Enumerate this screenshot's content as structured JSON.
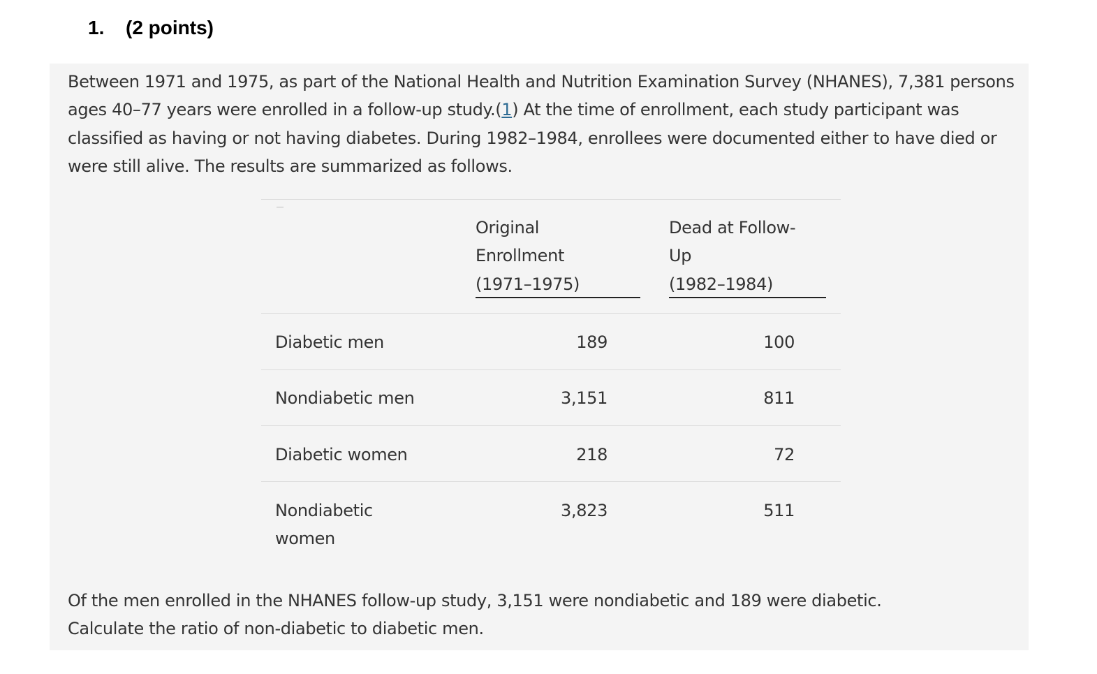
{
  "question": {
    "number": "1.",
    "points": "(2 points)"
  },
  "intro": {
    "text_before_link": "Between 1971 and 1975, as part of the National Health and Nutrition Examination Survey (NHANES), 7,381 persons ages 40–77 years were enrolled in a follow-up study.(",
    "link_text": "1",
    "text_after_link": ") At the time of enrollment, each study participant was classified as having or not having diabetes. During 1982–1984, enrollees were documented either to have died or were still alive. The results are summarized as follows."
  },
  "table": {
    "columns": [
      {
        "line1": "Original",
        "line2": "Enrollment",
        "line3": "(1971–1975)"
      },
      {
        "line1": "Dead at Follow-",
        "line2": "Up",
        "line3": "(1982–1984)"
      }
    ],
    "rows": [
      {
        "label": "Diabetic men",
        "original": "189",
        "dead": "100"
      },
      {
        "label": "Nondiabetic men",
        "original": "3,151",
        "dead": "811"
      },
      {
        "label": "Diabetic women",
        "original": "218",
        "dead": "72"
      },
      {
        "label_line1": "Nondiabetic",
        "label_line2": "women",
        "original": "3,823",
        "dead": "511"
      }
    ]
  },
  "prompt": {
    "line1": "Of the men enrolled in the NHANES follow-up study, 3,151 were nondiabetic and 189 were diabetic.",
    "line2": "Calculate the ratio of non-diabetic to diabetic men."
  }
}
